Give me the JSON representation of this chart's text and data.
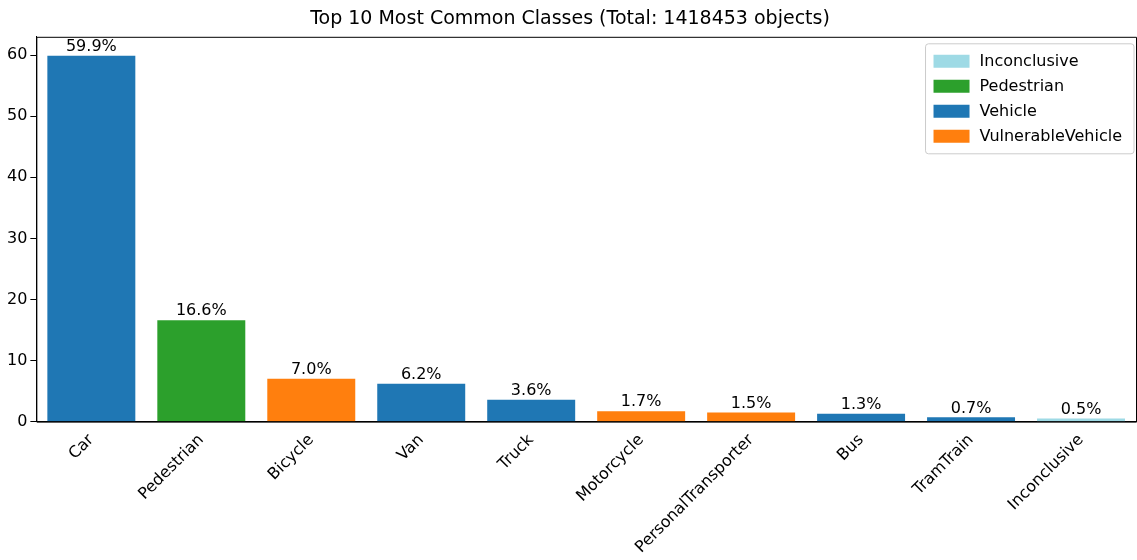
{
  "chart_data": {
    "type": "bar",
    "title": "Top 10 Most Common Classes (Total: 1418453 objects)",
    "categories": [
      "Car",
      "Pedestrian",
      "Bicycle",
      "Van",
      "Truck",
      "Motorcycle",
      "PersonalTransporter",
      "Bus",
      "TramTrain",
      "Inconclusive"
    ],
    "series": [
      {
        "name": "Inconclusive",
        "color": "#9edae5",
        "values": [
          null,
          null,
          null,
          null,
          null,
          null,
          null,
          null,
          null,
          0.5
        ],
        "value_labels": [
          null,
          null,
          null,
          null,
          null,
          null,
          null,
          null,
          null,
          "0.5%"
        ]
      },
      {
        "name": "Pedestrian",
        "color": "#2ca02c",
        "values": [
          null,
          16.6,
          null,
          null,
          null,
          null,
          null,
          null,
          null,
          null
        ],
        "value_labels": [
          null,
          "16.6%",
          null,
          null,
          null,
          null,
          null,
          null,
          null,
          null
        ]
      },
      {
        "name": "Vehicle",
        "color": "#1f77b4",
        "values": [
          59.9,
          null,
          null,
          6.2,
          3.6,
          null,
          null,
          1.3,
          0.7,
          null
        ],
        "value_labels": [
          "59.9%",
          null,
          null,
          "6.2%",
          "3.6%",
          null,
          null,
          "1.3%",
          "0.7%",
          null
        ]
      },
      {
        "name": "VulnerableVehicle",
        "color": "#ff7f0e",
        "values": [
          null,
          null,
          7.0,
          null,
          null,
          1.7,
          1.5,
          null,
          null,
          null
        ],
        "value_labels": [
          null,
          null,
          "7.0%",
          null,
          null,
          "1.7%",
          "1.5%",
          null,
          null,
          null
        ]
      }
    ],
    "ylim": [
      0,
      63
    ],
    "yticks": [
      0,
      10,
      20,
      30,
      40,
      50,
      60
    ],
    "grid": false,
    "legend": "top right"
  }
}
